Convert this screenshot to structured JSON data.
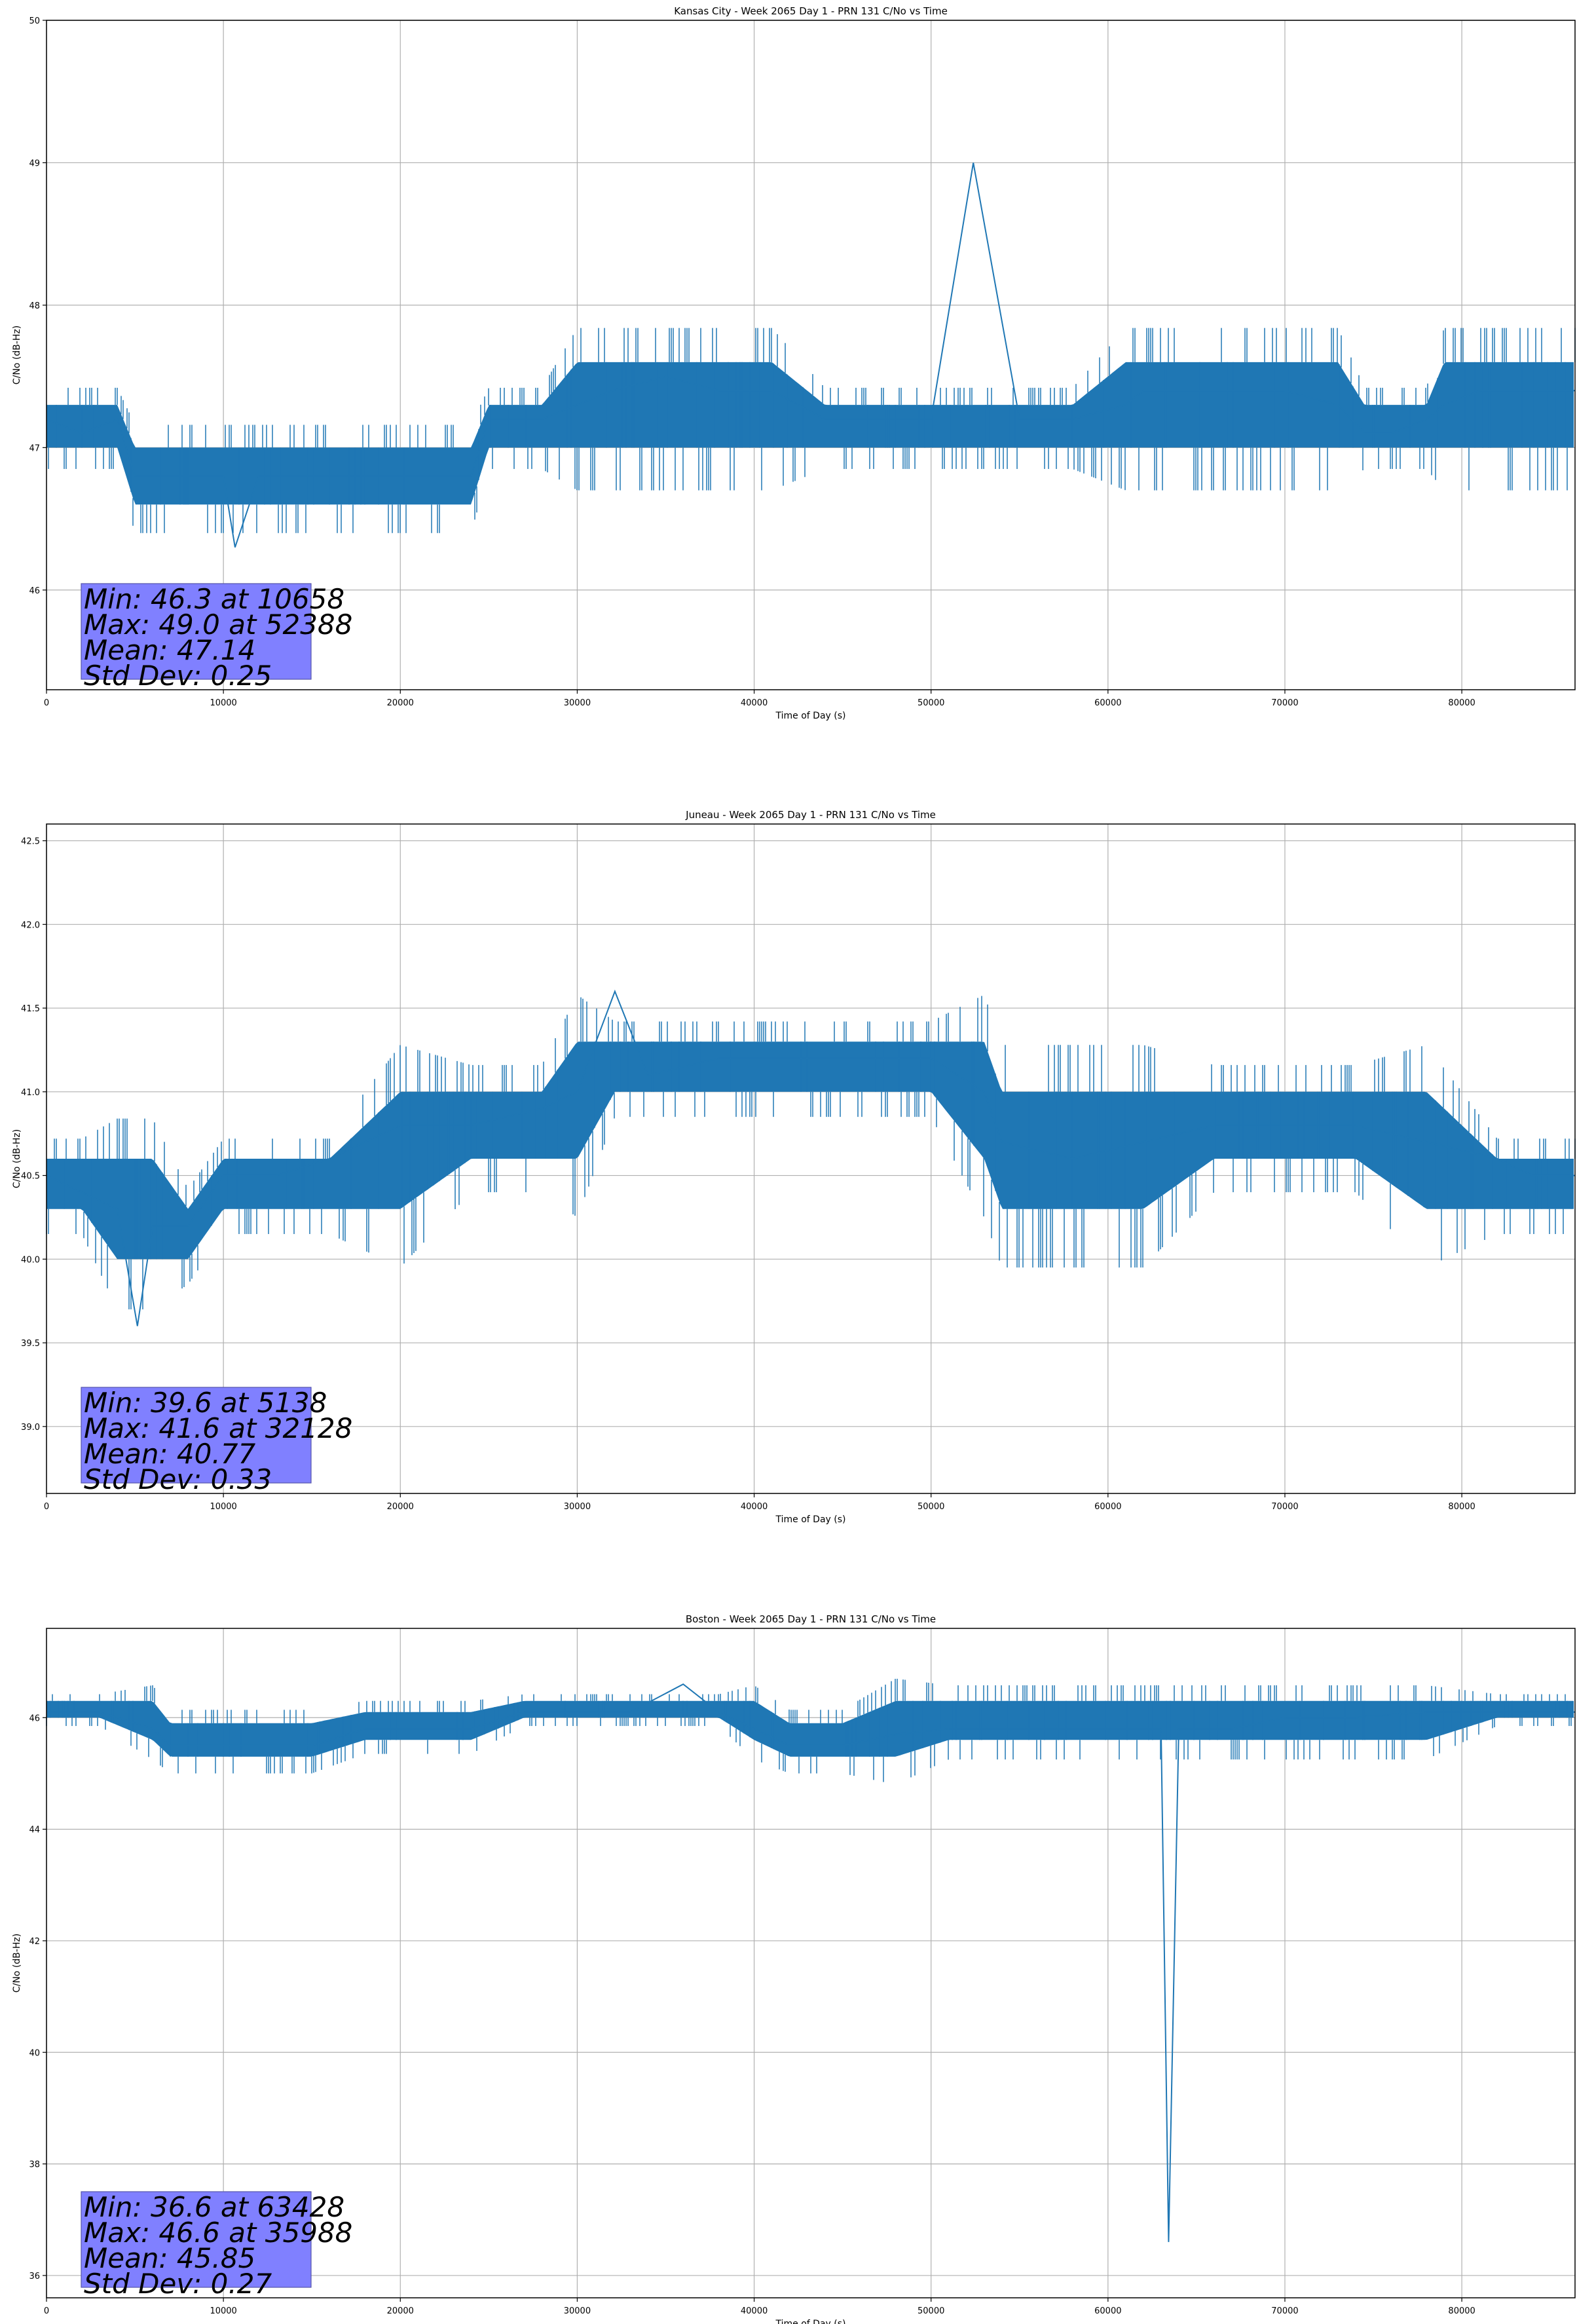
{
  "chart_data": [
    {
      "type": "line",
      "title": "Kansas City - Week 2065 Day 1 - PRN 131 C/No vs Time",
      "xlabel": "Time of Day (s)",
      "ylabel": "C/No (dB-Hz)",
      "xlim": [
        0,
        86400
      ],
      "ylim": [
        45.3,
        50
      ],
      "xticks": [
        0,
        10000,
        20000,
        30000,
        40000,
        50000,
        60000,
        70000,
        80000
      ],
      "yticks": [
        46,
        47,
        48,
        49,
        50
      ],
      "grid": true,
      "line_color": "#1f77b4",
      "series": [
        {
          "name": "C/No",
          "x": [
            0,
            2000,
            4000,
            5000,
            6000,
            8000,
            10000,
            10658,
            12000,
            15000,
            18000,
            21000,
            24000,
            25000,
            28000,
            30000,
            32000,
            35000,
            38000,
            41000,
            44000,
            47000,
            50000,
            52388,
            55000,
            58000,
            61000,
            62000,
            64000,
            67000,
            70000,
            73000,
            74500,
            76000,
            78000,
            79000,
            81000,
            84000,
            86400
          ],
          "y": [
            47.2,
            47.1,
            47.2,
            46.8,
            46.8,
            46.8,
            46.8,
            46.3,
            46.8,
            46.8,
            46.8,
            46.8,
            46.8,
            47.2,
            47.2,
            47.3,
            47.4,
            47.5,
            47.4,
            47.4,
            47.2,
            47.2,
            47.2,
            49.0,
            47.2,
            47.2,
            47.3,
            47.4,
            47.4,
            47.4,
            47.4,
            47.3,
            47.1,
            47.1,
            47.2,
            47.3,
            47.4,
            47.4,
            47.4
          ],
          "upper": [
            47.3,
            47.3,
            47.3,
            47.0,
            47.0,
            47.0,
            47.0,
            47.0,
            47.0,
            47.0,
            47.0,
            47.0,
            47.0,
            47.3,
            47.3,
            47.6,
            47.6,
            47.6,
            47.6,
            47.6,
            47.3,
            47.3,
            47.3,
            47.3,
            47.3,
            47.3,
            47.6,
            47.6,
            47.6,
            47.6,
            47.6,
            47.6,
            47.3,
            47.3,
            47.3,
            47.6,
            47.6,
            47.6,
            47.6
          ],
          "lower": [
            47.0,
            47.0,
            47.0,
            46.6,
            46.6,
            46.6,
            46.6,
            46.6,
            46.6,
            46.6,
            46.6,
            46.6,
            46.6,
            47.0,
            47.0,
            47.0,
            47.0,
            47.0,
            47.0,
            47.0,
            47.0,
            47.0,
            47.0,
            47.0,
            47.0,
            47.0,
            47.0,
            47.0,
            47.0,
            47.0,
            47.0,
            47.0,
            47.0,
            47.0,
            47.0,
            47.0,
            47.0,
            47.0,
            47.0
          ]
        }
      ],
      "annotation": {
        "lines": [
          "Min: 46.3 at 10658",
          "Max: 49.0 at 52388",
          "Mean: 47.14",
          "Std Dev: 0.25"
        ],
        "location": "lower-left"
      }
    },
    {
      "type": "line",
      "title": "Juneau - Week 2065 Day 1 - PRN 131 C/No vs Time",
      "xlabel": "Time of Day (s)",
      "ylabel": "C/No (dB-Hz)",
      "xlim": [
        0,
        86400
      ],
      "ylim": [
        38.6,
        42.6
      ],
      "xticks": [
        0,
        10000,
        20000,
        30000,
        40000,
        50000,
        60000,
        70000,
        80000
      ],
      "yticks": [
        39.0,
        39.5,
        40.0,
        40.5,
        41.0,
        41.5,
        42.0,
        42.5
      ],
      "tick_format": "0.0",
      "grid": true,
      "line_color": "#1f77b4",
      "series": [
        {
          "name": "C/No",
          "x": [
            0,
            2000,
            4000,
            5138,
            6000,
            8000,
            10000,
            13000,
            16000,
            20000,
            24000,
            28000,
            30000,
            32128,
            34000,
            38000,
            42000,
            46000,
            50000,
            53000,
            54000,
            58000,
            62000,
            66000,
            70000,
            74000,
            78000,
            82000,
            84000,
            86400
          ],
          "y": [
            40.5,
            40.4,
            40.3,
            39.6,
            40.2,
            40.2,
            40.5,
            40.5,
            40.6,
            40.8,
            40.8,
            40.9,
            41.0,
            41.6,
            41.1,
            41.2,
            41.2,
            41.2,
            41.2,
            41.0,
            40.7,
            40.6,
            40.7,
            40.8,
            40.8,
            40.8,
            40.7,
            40.6,
            40.5,
            40.5
          ],
          "upper": [
            40.6,
            40.6,
            40.6,
            40.6,
            40.6,
            40.3,
            40.6,
            40.6,
            40.6,
            41.0,
            41.0,
            41.0,
            41.3,
            41.3,
            41.3,
            41.3,
            41.3,
            41.3,
            41.3,
            41.3,
            41.0,
            41.0,
            41.0,
            41.0,
            41.0,
            41.0,
            41.0,
            40.6,
            40.6,
            40.6
          ],
          "lower": [
            40.3,
            40.3,
            40.0,
            40.0,
            40.0,
            40.0,
            40.3,
            40.3,
            40.3,
            40.3,
            40.6,
            40.6,
            40.6,
            41.0,
            41.0,
            41.0,
            41.0,
            41.0,
            41.0,
            40.6,
            40.3,
            40.3,
            40.3,
            40.6,
            40.6,
            40.6,
            40.3,
            40.3,
            40.3,
            40.3
          ]
        }
      ],
      "annotation": {
        "lines": [
          "Min: 39.6 at 5138",
          "Max: 41.6 at 32128",
          "Mean: 40.77",
          "Std Dev: 0.33"
        ],
        "location": "lower-left"
      }
    },
    {
      "type": "line",
      "title": "Boston - Week 2065 Day 1 - PRN 131 C/No vs Time",
      "xlabel": "Time of Day (s)",
      "ylabel": "C/No (dB-Hz)",
      "xlim": [
        0,
        86400
      ],
      "ylim": [
        35.6,
        47.6
      ],
      "xticks": [
        0,
        10000,
        20000,
        30000,
        40000,
        50000,
        60000,
        70000,
        80000
      ],
      "yticks": [
        36,
        38,
        40,
        42,
        44,
        46
      ],
      "grid": true,
      "line_color": "#1f77b4",
      "series": [
        {
          "name": "C/No",
          "x": [
            0,
            3000,
            6000,
            7000,
            9000,
            12000,
            15000,
            18000,
            21000,
            24000,
            27000,
            30000,
            33000,
            35988,
            38000,
            40000,
            42000,
            45000,
            48000,
            51000,
            54000,
            57000,
            60000,
            63000,
            63428,
            64000,
            67000,
            70000,
            74000,
            78000,
            82000,
            86400
          ],
          "y": [
            46.1,
            46.1,
            45.8,
            45.5,
            45.5,
            45.5,
            45.5,
            45.8,
            45.8,
            45.8,
            46.1,
            46.1,
            46.1,
            46.6,
            46.1,
            45.8,
            45.5,
            45.5,
            45.7,
            45.8,
            45.8,
            45.8,
            45.8,
            45.8,
            36.6,
            45.8,
            45.8,
            46.0,
            46.0,
            46.1,
            46.1,
            46.1
          ],
          "upper": [
            46.3,
            46.3,
            46.3,
            45.9,
            45.9,
            45.9,
            45.9,
            46.1,
            46.1,
            46.1,
            46.3,
            46.3,
            46.3,
            46.3,
            46.3,
            46.3,
            45.9,
            45.9,
            46.3,
            46.3,
            46.3,
            46.3,
            46.3,
            46.3,
            46.3,
            46.3,
            46.3,
            46.3,
            46.3,
            46.3,
            46.3,
            46.3
          ],
          "lower": [
            46.0,
            46.0,
            45.6,
            45.3,
            45.3,
            45.3,
            45.3,
            45.6,
            45.6,
            45.6,
            46.0,
            46.0,
            46.0,
            46.0,
            46.0,
            45.6,
            45.3,
            45.3,
            45.3,
            45.6,
            45.6,
            45.6,
            45.6,
            45.6,
            45.6,
            45.6,
            45.6,
            45.6,
            45.6,
            45.6,
            46.0,
            46.0
          ]
        }
      ],
      "annotation": {
        "lines": [
          "Min: 36.6 at 63428",
          "Max: 46.6 at 35988",
          "Mean: 45.85",
          "Std Dev: 0.27"
        ],
        "location": "lower-left"
      }
    }
  ]
}
